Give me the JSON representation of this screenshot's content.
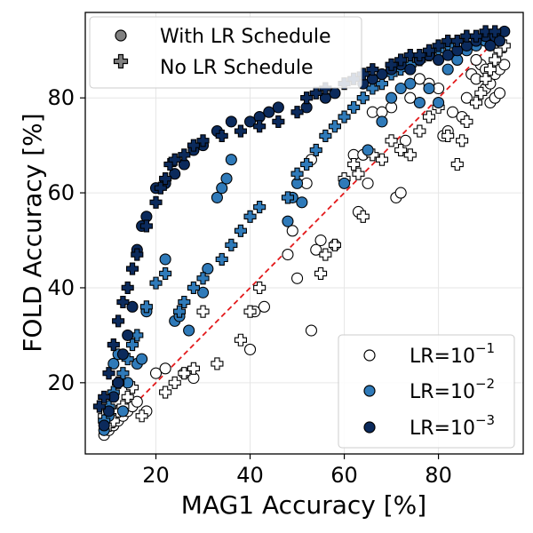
{
  "chart_data": {
    "type": "scatter",
    "title": "",
    "xlabel": "MAG1 Accuracy [%]",
    "ylabel": "FOLD Accuracy [%]",
    "xlim": [
      5,
      98
    ],
    "ylim": [
      5,
      98
    ],
    "x_ticks": [
      20,
      40,
      60,
      80
    ],
    "y_ticks": [
      20,
      40,
      60,
      80
    ],
    "grid": true,
    "reference_line": {
      "style": "dashed",
      "color": "#e31a1c",
      "points": [
        [
          10,
          10
        ],
        [
          95,
          95
        ]
      ]
    },
    "marker_legend": {
      "placement": "top-left",
      "entries": [
        {
          "label": "With LR Schedule",
          "marker": "circle"
        },
        {
          "label": "No LR Schedule",
          "marker": "plus"
        }
      ]
    },
    "color_legend": {
      "placement": "bottom-right",
      "entries": [
        {
          "label": "LR=10",
          "exponent": "−1",
          "color": "#ffffff"
        },
        {
          "label": "LR=10",
          "exponent": "−2",
          "color": "#2f7ab9"
        },
        {
          "label": "LR=10",
          "exponent": "−3",
          "color": "#0b2a5c"
        }
      ]
    },
    "series": [
      {
        "lr": "1e-1",
        "schedule": "with",
        "marker": "circle",
        "color": "#ffffff",
        "points": [
          [
            9,
            9
          ],
          [
            10,
            10
          ],
          [
            11,
            11
          ],
          [
            12,
            12
          ],
          [
            13,
            13
          ],
          [
            14,
            14
          ],
          [
            15,
            15
          ],
          [
            16,
            16
          ],
          [
            18,
            14
          ],
          [
            20,
            22
          ],
          [
            22,
            23
          ],
          [
            26,
            22
          ],
          [
            28,
            21
          ],
          [
            40,
            27
          ],
          [
            41,
            35
          ],
          [
            43,
            36
          ],
          [
            48,
            47
          ],
          [
            49,
            52
          ],
          [
            50,
            42
          ],
          [
            53,
            31
          ],
          [
            54,
            48
          ],
          [
            55,
            50
          ],
          [
            52,
            62
          ],
          [
            53,
            67
          ],
          [
            58,
            49
          ],
          [
            62,
            68
          ],
          [
            63,
            56
          ],
          [
            64,
            68
          ],
          [
            65,
            62
          ],
          [
            66,
            77
          ],
          [
            68,
            77
          ],
          [
            70,
            78
          ],
          [
            71,
            59
          ],
          [
            72,
            60
          ],
          [
            73,
            71
          ],
          [
            74,
            80
          ],
          [
            76,
            84
          ],
          [
            78,
            83
          ],
          [
            80,
            82
          ],
          [
            81,
            72
          ],
          [
            82,
            73
          ],
          [
            83,
            77
          ],
          [
            85,
            76
          ],
          [
            86,
            80
          ],
          [
            87,
            85
          ],
          [
            88,
            84
          ],
          [
            89,
            87
          ],
          [
            90,
            82
          ],
          [
            91,
            83
          ],
          [
            92,
            85
          ],
          [
            93,
            86
          ],
          [
            94,
            87
          ],
          [
            91,
            79
          ],
          [
            92,
            80
          ],
          [
            93,
            81
          ],
          [
            90,
            86
          ],
          [
            88,
            88
          ]
        ]
      },
      {
        "lr": "1e-1",
        "schedule": "no",
        "marker": "plus",
        "color": "#ffffff",
        "points": [
          [
            9,
            13
          ],
          [
            10,
            11
          ],
          [
            11,
            12
          ],
          [
            12,
            14
          ],
          [
            13,
            15
          ],
          [
            14,
            17
          ],
          [
            15,
            19
          ],
          [
            17,
            13
          ],
          [
            22,
            18
          ],
          [
            24,
            20
          ],
          [
            26,
            22
          ],
          [
            28,
            23
          ],
          [
            30,
            35
          ],
          [
            33,
            24
          ],
          [
            38,
            29
          ],
          [
            40,
            35
          ],
          [
            42,
            40
          ],
          [
            55,
            43
          ],
          [
            56,
            47
          ],
          [
            58,
            49
          ],
          [
            60,
            63
          ],
          [
            62,
            66
          ],
          [
            63,
            64
          ],
          [
            64,
            55
          ],
          [
            66,
            68
          ],
          [
            68,
            67
          ],
          [
            70,
            71
          ],
          [
            72,
            69
          ],
          [
            74,
            68
          ],
          [
            76,
            73
          ],
          [
            78,
            76
          ],
          [
            80,
            78
          ],
          [
            82,
            72
          ],
          [
            84,
            66
          ],
          [
            85,
            71
          ],
          [
            86,
            75
          ],
          [
            88,
            79
          ],
          [
            89,
            81
          ],
          [
            90,
            84
          ],
          [
            91,
            86
          ],
          [
            92,
            88
          ],
          [
            93,
            90
          ],
          [
            94,
            91
          ]
        ]
      },
      {
        "lr": "1e-2",
        "schedule": "with",
        "marker": "circle",
        "color": "#2f7ab9",
        "points": [
          [
            9,
            10
          ],
          [
            10,
            13
          ],
          [
            11,
            24
          ],
          [
            12,
            26
          ],
          [
            13,
            14
          ],
          [
            14,
            20
          ],
          [
            16,
            24
          ],
          [
            17,
            25
          ],
          [
            18,
            35
          ],
          [
            22,
            46
          ],
          [
            24,
            33
          ],
          [
            25,
            34
          ],
          [
            27,
            31
          ],
          [
            30,
            39
          ],
          [
            31,
            44
          ],
          [
            33,
            59
          ],
          [
            34,
            61
          ],
          [
            35,
            63
          ],
          [
            36,
            67
          ],
          [
            48,
            54
          ],
          [
            49,
            59
          ],
          [
            50,
            62
          ],
          [
            51,
            58
          ],
          [
            60,
            62
          ],
          [
            65,
            69
          ],
          [
            68,
            75
          ],
          [
            70,
            80
          ],
          [
            72,
            82
          ],
          [
            74,
            83
          ],
          [
            76,
            79
          ],
          [
            78,
            82
          ],
          [
            80,
            79
          ],
          [
            82,
            86
          ],
          [
            84,
            88
          ],
          [
            86,
            90
          ],
          [
            88,
            91
          ],
          [
            90,
            92
          ],
          [
            92,
            93
          ]
        ]
      },
      {
        "lr": "1e-2",
        "schedule": "no",
        "marker": "plus",
        "color": "#2f7ab9",
        "points": [
          [
            9,
            12
          ],
          [
            10,
            15
          ],
          [
            11,
            18
          ],
          [
            12,
            20
          ],
          [
            13,
            22
          ],
          [
            14,
            25
          ],
          [
            15,
            28
          ],
          [
            16,
            30
          ],
          [
            18,
            36
          ],
          [
            20,
            41
          ],
          [
            22,
            43
          ],
          [
            25,
            35
          ],
          [
            26,
            37
          ],
          [
            28,
            40
          ],
          [
            30,
            42
          ],
          [
            34,
            46
          ],
          [
            36,
            49
          ],
          [
            38,
            52
          ],
          [
            40,
            55
          ],
          [
            42,
            57
          ],
          [
            48,
            59
          ],
          [
            50,
            64
          ],
          [
            52,
            66
          ],
          [
            54,
            69
          ],
          [
            56,
            72
          ],
          [
            58,
            74
          ],
          [
            60,
            76
          ],
          [
            62,
            78
          ],
          [
            64,
            80
          ],
          [
            66,
            82
          ],
          [
            68,
            83
          ],
          [
            70,
            85
          ],
          [
            72,
            86
          ],
          [
            74,
            87
          ],
          [
            76,
            88
          ],
          [
            78,
            89
          ],
          [
            80,
            90
          ],
          [
            82,
            91
          ],
          [
            84,
            92
          ],
          [
            86,
            93
          ]
        ]
      },
      {
        "lr": "1e-3",
        "schedule": "with",
        "marker": "circle",
        "color": "#0b2a5c",
        "points": [
          [
            9,
            11
          ],
          [
            10,
            14
          ],
          [
            11,
            17
          ],
          [
            12,
            20
          ],
          [
            13,
            26
          ],
          [
            14,
            30
          ],
          [
            15,
            36
          ],
          [
            16,
            48
          ],
          [
            17,
            53
          ],
          [
            18,
            55
          ],
          [
            20,
            61
          ],
          [
            22,
            62
          ],
          [
            24,
            64
          ],
          [
            26,
            66
          ],
          [
            28,
            69
          ],
          [
            30,
            70
          ],
          [
            33,
            73
          ],
          [
            36,
            75
          ],
          [
            40,
            75
          ],
          [
            42,
            76
          ],
          [
            44,
            77
          ],
          [
            46,
            78
          ],
          [
            52,
            78
          ],
          [
            56,
            80
          ],
          [
            58,
            81
          ],
          [
            64,
            83
          ],
          [
            66,
            84
          ],
          [
            68,
            85
          ],
          [
            70,
            86
          ],
          [
            72,
            87
          ],
          [
            74,
            86
          ],
          [
            76,
            88
          ],
          [
            78,
            89
          ],
          [
            80,
            88
          ],
          [
            82,
            89
          ],
          [
            84,
            90
          ],
          [
            86,
            91
          ],
          [
            88,
            92
          ],
          [
            90,
            93
          ],
          [
            92,
            93
          ],
          [
            94,
            94
          ],
          [
            93,
            92
          ],
          [
            91,
            91
          ]
        ]
      },
      {
        "lr": "1e-3",
        "schedule": "no",
        "marker": "plus",
        "color": "#0b2a5c",
        "points": [
          [
            8,
            15
          ],
          [
            9,
            17
          ],
          [
            10,
            22
          ],
          [
            11,
            28
          ],
          [
            12,
            33
          ],
          [
            13,
            37
          ],
          [
            14,
            40
          ],
          [
            15,
            44
          ],
          [
            16,
            47
          ],
          [
            18,
            53
          ],
          [
            20,
            58
          ],
          [
            21,
            61
          ],
          [
            22,
            63
          ],
          [
            23,
            66
          ],
          [
            24,
            67
          ],
          [
            26,
            68
          ],
          [
            28,
            70
          ],
          [
            30,
            71
          ],
          [
            34,
            72
          ],
          [
            38,
            73
          ],
          [
            42,
            74
          ],
          [
            46,
            75
          ],
          [
            50,
            77
          ],
          [
            52,
            80
          ],
          [
            54,
            81
          ],
          [
            56,
            82
          ],
          [
            60,
            83
          ],
          [
            62,
            84
          ],
          [
            64,
            85
          ],
          [
            66,
            86
          ],
          [
            70,
            87
          ],
          [
            72,
            88
          ],
          [
            74,
            89
          ],
          [
            76,
            89
          ],
          [
            78,
            90
          ],
          [
            80,
            91
          ],
          [
            82,
            92
          ],
          [
            84,
            92
          ],
          [
            86,
            93
          ],
          [
            88,
            93
          ],
          [
            90,
            94
          ],
          [
            92,
            94
          ]
        ]
      }
    ]
  }
}
